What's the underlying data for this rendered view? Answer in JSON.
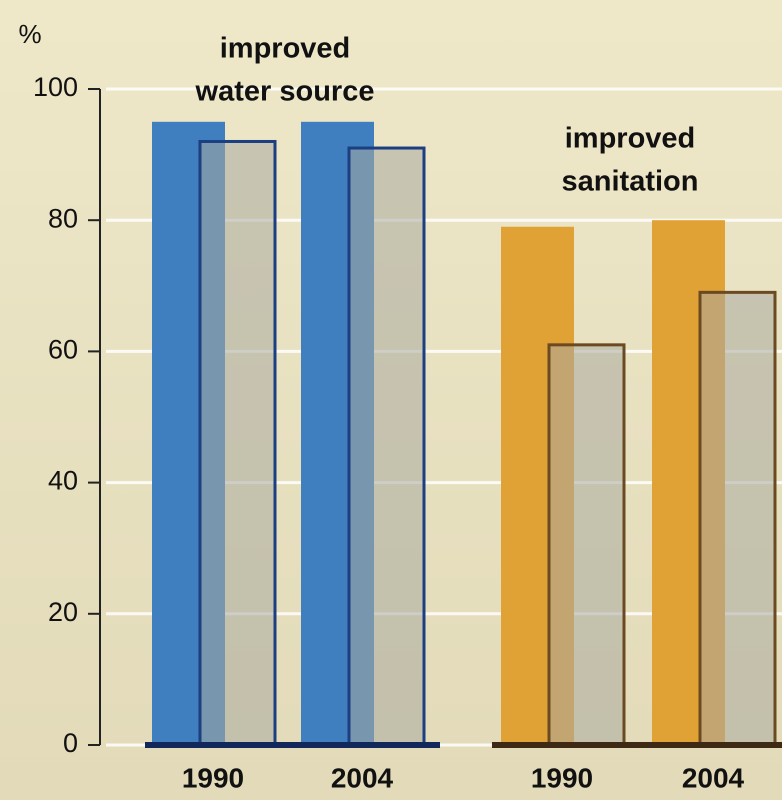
{
  "chart_data": [
    {
      "type": "bar",
      "y_label": "%",
      "title": [
        "improved",
        "water source"
      ],
      "categories": [
        "1990",
        "2004"
      ],
      "series": [
        {
          "color": "#3f7fc0",
          "values": [
            95,
            95
          ]
        },
        {
          "color": "#1b3f80",
          "values": [
            92,
            91
          ]
        }
      ],
      "baseline_color": "#13285a",
      "ylim": [
        0,
        100
      ],
      "yticks": [
        0,
        20,
        40,
        60,
        80,
        100
      ],
      "grid": true
    },
    {
      "type": "bar",
      "title": [
        "improved",
        "sanitation"
      ],
      "categories": [
        "1990",
        "2004"
      ],
      "series": [
        {
          "color": "#e0a135",
          "values": [
            79,
            80
          ]
        },
        {
          "color": "#6b4a22",
          "values": [
            61,
            69
          ]
        }
      ],
      "baseline_color": "#3e2a14",
      "ylim": [
        0,
        100
      ],
      "grid": true
    }
  ]
}
